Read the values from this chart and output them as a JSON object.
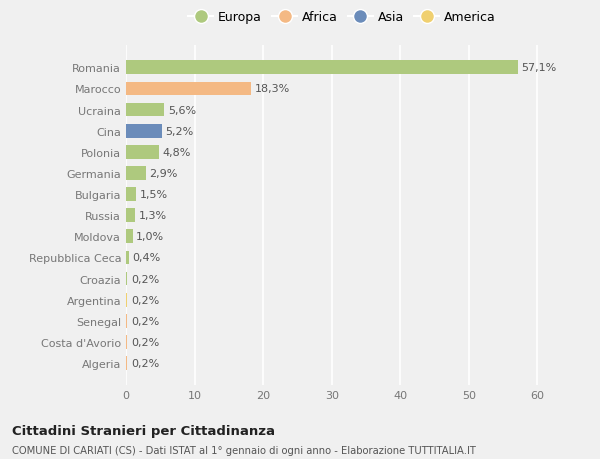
{
  "categories": [
    "Romania",
    "Marocco",
    "Ucraina",
    "Cina",
    "Polonia",
    "Germania",
    "Bulgaria",
    "Russia",
    "Moldova",
    "Repubblica Ceca",
    "Croazia",
    "Argentina",
    "Senegal",
    "Costa d'Avorio",
    "Algeria"
  ],
  "values": [
    57.1,
    18.3,
    5.6,
    5.2,
    4.8,
    2.9,
    1.5,
    1.3,
    1.0,
    0.4,
    0.2,
    0.2,
    0.2,
    0.2,
    0.2
  ],
  "labels": [
    "57,1%",
    "18,3%",
    "5,6%",
    "5,2%",
    "4,8%",
    "2,9%",
    "1,5%",
    "1,3%",
    "1,0%",
    "0,4%",
    "0,2%",
    "0,2%",
    "0,2%",
    "0,2%",
    "0,2%"
  ],
  "continent": [
    "Europa",
    "Africa",
    "Europa",
    "Asia",
    "Europa",
    "Europa",
    "Europa",
    "Europa",
    "Europa",
    "Europa",
    "Europa",
    "America",
    "Africa",
    "Africa",
    "Africa"
  ],
  "colors": {
    "Europa": "#aec97e",
    "Africa": "#f4b984",
    "Asia": "#6b8cba",
    "America": "#f0d070"
  },
  "legend_order": [
    "Europa",
    "Africa",
    "Asia",
    "America"
  ],
  "xlim": [
    0,
    63
  ],
  "xticks": [
    0,
    10,
    20,
    30,
    40,
    50,
    60
  ],
  "title": "Cittadini Stranieri per Cittadinanza",
  "subtitle": "COMUNE DI CARIATI (CS) - Dati ISTAT al 1° gennaio di ogni anno - Elaborazione TUTTITALIA.IT",
  "bg_color": "#f0f0f0",
  "grid_color": "#ffffff",
  "label_fontsize": 8,
  "tick_fontsize": 8,
  "bar_height": 0.65
}
